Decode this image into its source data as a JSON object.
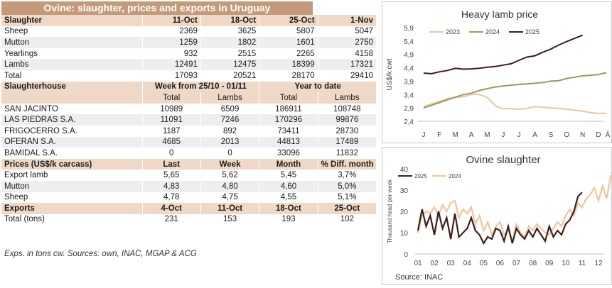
{
  "title": "Ovine: slaughter, prices and exports in Uruguay",
  "slaughter": {
    "header": [
      "Slaughter",
      "11-Oct",
      "18-Oct",
      "25-Oct",
      "1-Nov"
    ],
    "rows": [
      [
        "Sheep",
        "2369",
        "3625",
        "5807",
        "5047"
      ],
      [
        "Mutton",
        "1259",
        "1802",
        "1601",
        "2750"
      ],
      [
        "Yearlings",
        "932",
        "2515",
        "2265",
        "4158"
      ],
      [
        "Lambs",
        "12491",
        "12475",
        "18399",
        "17321"
      ],
      [
        "Total",
        "17093",
        "20521",
        "28170",
        "29410"
      ]
    ]
  },
  "slaughterhouse": {
    "header": [
      "Slaughterhouse",
      "Week from 25/10 - 01/11",
      "Year to date"
    ],
    "subheader": [
      "",
      "Total",
      "Lambs",
      "Total",
      "Lambs"
    ],
    "rows": [
      [
        "SAN JACINTO",
        "10989",
        "6509",
        "186911",
        "108748"
      ],
      [
        "LAS PIEDRAS S.A.",
        "11091",
        "7246",
        "170296",
        "99876"
      ],
      [
        "FRIGOCERRO S.A.",
        "1187",
        "892",
        "73411",
        "28730"
      ],
      [
        "OFERAN S.A.",
        "4685",
        "2013",
        "44813",
        "17489"
      ],
      [
        "BAMIDAL S.A.",
        "0",
        "0",
        "33096",
        "11832"
      ]
    ]
  },
  "prices": {
    "header": [
      "Prices (US$/k carcass)",
      "Last",
      "Week",
      "Month",
      "% Diff. month"
    ],
    "rows": [
      [
        "Export lamb",
        "5,65",
        "5,62",
        "5,45",
        "3,7%"
      ],
      [
        "Mutton",
        "4,83",
        "4,80",
        "4,60",
        "5,0%"
      ],
      [
        "Sheep",
        "4,78",
        "4,75",
        "4,55",
        "5,1%"
      ]
    ]
  },
  "exports": {
    "header": [
      "Exports",
      "4-Oct",
      "11-Oct",
      "18-Oct",
      "25-Oct"
    ],
    "rows": [
      [
        "Total (tons)",
        "231",
        "153",
        "193",
        "102"
      ]
    ]
  },
  "footnote": "Exps. in tons cw. Sources: own, INAC, MGAP & ACG",
  "chart_data": [
    {
      "type": "line",
      "title": "Heavy lamb price",
      "ylabel": "US$/k cwt",
      "ylim": [
        2.4,
        5.9
      ],
      "yticks": [
        "2,4",
        "2,9",
        "3,4",
        "3,9",
        "4,4",
        "4,9",
        "5,4",
        "5,9"
      ],
      "categories": [
        "J",
        "F",
        "M",
        "A",
        "M",
        "J",
        "J",
        "A",
        "S",
        "O",
        "N",
        "D"
      ],
      "extra_tick": "Â",
      "colors": {
        "2023": "#f0c49e",
        "2024": "#9a9a5a",
        "2025": "#3d1f1a"
      },
      "series": [
        {
          "name": "2023",
          "x": [
            0,
            0.5,
            1,
            1.5,
            2,
            2.5,
            3,
            3.3,
            3.6,
            4,
            4.3,
            4.6,
            5,
            5.5,
            6,
            6.5,
            7,
            7.5,
            8,
            8.5,
            9,
            9.5,
            10,
            10.5,
            11,
            11.5
          ],
          "values": [
            2.95,
            3.05,
            3.15,
            3.25,
            3.3,
            3.32,
            3.4,
            3.42,
            3.38,
            3.3,
            3.1,
            2.95,
            2.88,
            2.87,
            2.85,
            2.88,
            2.95,
            2.93,
            2.9,
            2.88,
            2.85,
            2.82,
            2.78,
            2.72,
            2.7,
            2.7
          ]
        },
        {
          "name": "2024",
          "x": [
            0,
            0.5,
            1,
            1.5,
            2,
            2.5,
            3,
            3.5,
            4,
            4.5,
            5,
            5.5,
            6,
            6.5,
            7,
            7.5,
            8,
            8.5,
            9,
            9.5,
            10,
            10.5,
            11,
            11.5
          ],
          "values": [
            2.9,
            3.0,
            3.1,
            3.2,
            3.3,
            3.4,
            3.45,
            3.55,
            3.62,
            3.68,
            3.72,
            3.75,
            3.78,
            3.8,
            3.82,
            3.85,
            3.9,
            3.92,
            4.0,
            4.05,
            4.1,
            4.12,
            4.15,
            4.22
          ]
        },
        {
          "name": "2025",
          "x": [
            0,
            0.5,
            1,
            1.5,
            2,
            2.5,
            3,
            3.5,
            4,
            4.5,
            5,
            5.5,
            6,
            6.5,
            7,
            7.5,
            8,
            8.5,
            9,
            9.5,
            10
          ],
          "values": [
            4.2,
            4.18,
            4.25,
            4.3,
            4.38,
            4.35,
            4.36,
            4.38,
            4.42,
            4.45,
            4.5,
            4.55,
            4.68,
            4.8,
            4.85,
            4.98,
            5.1,
            5.25,
            5.38,
            5.5,
            5.62
          ]
        }
      ]
    },
    {
      "type": "line",
      "title": "Ovine slaughter",
      "ylabel": "Thousand head per week",
      "ylim": [
        0,
        40
      ],
      "yticks": [
        "0",
        "10",
        "20",
        "30",
        "40"
      ],
      "categories": [
        "01",
        "02",
        "03",
        "04",
        "05",
        "06",
        "07",
        "08",
        "09",
        "10",
        "11",
        "12"
      ],
      "colors": {
        "2025": "#3d1f1a",
        "2024": "#f0c49e"
      },
      "series": [
        {
          "name": "2025",
          "x": [
            0,
            0.25,
            0.5,
            0.75,
            1,
            1.25,
            1.5,
            1.75,
            2,
            2.25,
            2.5,
            2.75,
            3,
            3.25,
            3.5,
            3.75,
            4,
            4.25,
            4.5,
            4.75,
            5,
            5.25,
            5.5,
            5.75,
            6,
            6.25,
            6.5,
            6.75,
            7,
            7.25,
            7.5,
            7.75,
            8,
            8.25,
            8.5,
            8.75,
            9,
            9.25,
            9.5,
            9.75,
            10
          ],
          "values": [
            11,
            21,
            13,
            18,
            9,
            20,
            12,
            17,
            7,
            19,
            8,
            10,
            12,
            17,
            11,
            9,
            5,
            8,
            7,
            12,
            11,
            6,
            13,
            5,
            12,
            9,
            7,
            11,
            8,
            12,
            9,
            6,
            13,
            8,
            11,
            9,
            14,
            16,
            20,
            27,
            29
          ]
        },
        {
          "name": "2024",
          "x": [
            0,
            0.25,
            0.5,
            0.75,
            1,
            1.25,
            1.5,
            1.75,
            2,
            2.25,
            2.5,
            2.75,
            3,
            3.25,
            3.5,
            3.75,
            4,
            4.25,
            4.5,
            4.75,
            5,
            5.25,
            5.5,
            5.75,
            6,
            6.25,
            6.5,
            6.75,
            7,
            7.25,
            7.5,
            7.75,
            8,
            8.25,
            8.5,
            8.75,
            9,
            9.25,
            9.5,
            9.75,
            10,
            10.25,
            10.5,
            10.75,
            11,
            11.25,
            11.5,
            11.75
          ],
          "values": [
            10,
            18,
            20,
            19,
            22,
            18,
            23,
            20,
            24,
            25,
            17,
            21,
            19,
            22,
            14,
            18,
            11,
            15,
            9,
            13,
            15,
            9,
            11,
            6,
            14,
            10,
            8,
            13,
            11,
            14,
            12,
            10,
            9,
            12,
            15,
            13,
            18,
            21,
            18,
            24,
            22,
            26,
            28,
            31,
            25,
            32,
            26,
            37
          ]
        }
      ]
    }
  ],
  "source": "Source: INAC"
}
